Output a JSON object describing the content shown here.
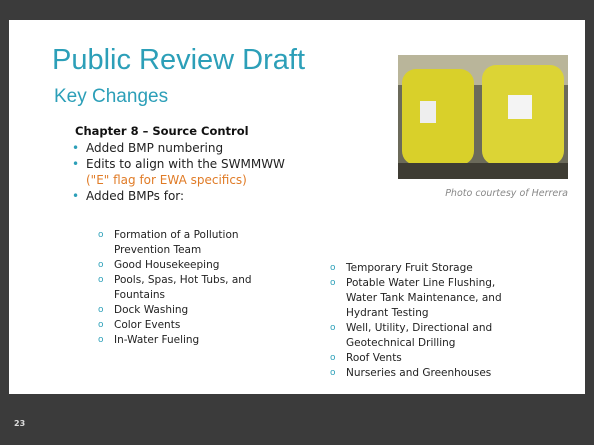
{
  "slide": {
    "title": "Public Review Draft",
    "subtitle": "Key Changes",
    "heading": "Chapter 8 – Source Control",
    "bullets": [
      {
        "text": "Added BMP numbering"
      },
      {
        "text": "Edits to align with the SWMMWW",
        "highlight": "(\"E\" flag for EWA specifics)"
      },
      {
        "text": "Added BMPs for:"
      }
    ],
    "bmps_left": [
      "Formation of a Pollution Prevention Team",
      "Good Housekeeping",
      "Pools, Spas, Hot Tubs, and Fountains",
      "Dock Washing",
      "Color Events",
      "In-Water Fueling"
    ],
    "bmps_right": [
      "Temporary Fruit Storage",
      "Potable Water Line Flushing, Water Tank Maintenance, and Hydrant Testing",
      "Well, Utility, Directional and Geotechnical Drilling",
      "Roof Vents",
      "Nurseries and Greenhouses"
    ],
    "photo_caption": "Photo courtesy of Herrera",
    "page_number": "23"
  }
}
